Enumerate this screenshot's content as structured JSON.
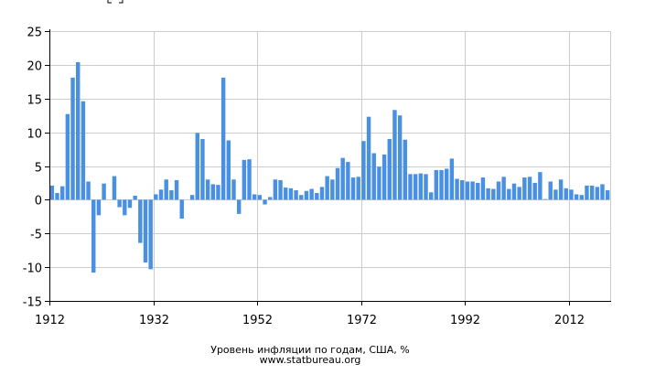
{
  "chart_data": {
    "type": "bar",
    "x_start": 1912,
    "x": [
      1912,
      1913,
      1914,
      1915,
      1916,
      1917,
      1918,
      1919,
      1920,
      1921,
      1922,
      1923,
      1924,
      1925,
      1926,
      1927,
      1928,
      1929,
      1930,
      1931,
      1932,
      1933,
      1934,
      1935,
      1936,
      1937,
      1938,
      1939,
      1940,
      1941,
      1942,
      1943,
      1944,
      1945,
      1946,
      1947,
      1948,
      1949,
      1950,
      1951,
      1952,
      1953,
      1954,
      1955,
      1956,
      1957,
      1958,
      1959,
      1960,
      1961,
      1962,
      1963,
      1964,
      1965,
      1966,
      1967,
      1968,
      1969,
      1970,
      1971,
      1972,
      1973,
      1974,
      1975,
      1976,
      1977,
      1978,
      1979,
      1980,
      1981,
      1982,
      1983,
      1984,
      1985,
      1986,
      1987,
      1988,
      1989,
      1990,
      1991,
      1992,
      1993,
      1994,
      1995,
      1996,
      1997,
      1998,
      1999,
      2000,
      2001,
      2002,
      2003,
      2004,
      2005,
      2006,
      2007,
      2008,
      2009,
      2010,
      2011,
      2012,
      2013,
      2014,
      2015,
      2016,
      2017,
      2018,
      2019
    ],
    "values": [
      2.1,
      1.0,
      2.0,
      12.7,
      18.1,
      20.4,
      14.6,
      2.7,
      -10.8,
      -2.3,
      2.4,
      0,
      3.5,
      -1.1,
      -2.3,
      -1.2,
      0.6,
      -6.4,
      -9.3,
      -10.3,
      0.8,
      1.5,
      3.0,
      1.4,
      2.9,
      -2.8,
      0,
      0.7,
      9.9,
      9.0,
      3.0,
      2.3,
      2.2,
      18.1,
      8.8,
      3.0,
      -2.1,
      5.9,
      6.0,
      0.8,
      0.7,
      -0.7,
      0.4,
      3.0,
      2.9,
      1.8,
      1.7,
      1.4,
      0.7,
      1.3,
      1.6,
      1.0,
      1.9,
      3.5,
      3.0,
      4.7,
      6.2,
      5.6,
      3.3,
      3.4,
      8.7,
      12.3,
      6.9,
      4.9,
      6.7,
      9.0,
      13.3,
      12.5,
      8.9,
      3.8,
      3.8,
      3.9,
      3.8,
      1.1,
      4.4,
      4.4,
      4.6,
      6.1,
      3.1,
      2.9,
      2.7,
      2.7,
      2.5,
      3.3,
      1.7,
      1.6,
      2.7,
      3.4,
      1.6,
      2.4,
      1.9,
      3.3,
      3.4,
      2.5,
      4.1,
      0.1,
      2.7,
      1.5,
      3.0,
      1.7,
      1.5,
      0.8,
      0.7,
      2.1,
      2.1,
      1.9,
      2.3,
      1.4
    ],
    "x_ticks": [
      "1912",
      "1932",
      "1952",
      "1972",
      "1992",
      "2012"
    ],
    "y_ticks": [
      "25",
      "20",
      "15",
      "10",
      "5",
      "0",
      "-5",
      "-10",
      "-15"
    ],
    "ylim": [
      -15,
      25
    ],
    "xlim": [
      1912,
      2020
    ],
    "grid": true,
    "bar_color": "#4a90e2",
    "title": "Уровень инфляции по годам, США, %",
    "source": "www.statbureau.org"
  }
}
